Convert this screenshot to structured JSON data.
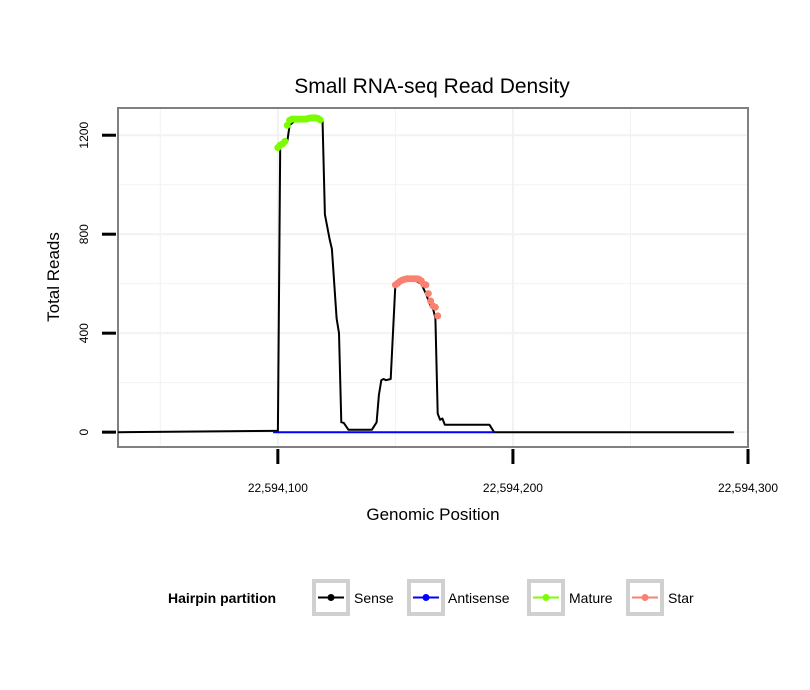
{
  "chart_data": {
    "type": "line",
    "title": "Small RNA-seq Read Density",
    "xlabel": "Genomic Position",
    "ylabel": "Total Reads",
    "xlim": [
      22594032,
      22594300
    ],
    "ylim": [
      -60,
      1310
    ],
    "x_ticks": [
      22594100,
      22594200,
      22594300
    ],
    "x_tick_labels": [
      "22,594,100",
      "22,594,200",
      "22,594,300"
    ],
    "y_ticks": [
      0,
      400,
      800,
      1200
    ],
    "y_tick_labels": [
      "0",
      "400",
      "800",
      "1200"
    ],
    "grid": true,
    "legend": {
      "title": "Hairpin partition",
      "position": "bottom",
      "entries": [
        "Sense",
        "Antisense",
        "Mature",
        "Star"
      ]
    },
    "series": [
      {
        "name": "Sense",
        "color": "#000000",
        "style": "line",
        "x": [
          22594032,
          22594098,
          22594100,
          22594101,
          22594102,
          22594104,
          22594105,
          22594108,
          22594112,
          22594115,
          22594118,
          22594119,
          22594120,
          22594122,
          22594123,
          22594125,
          22594126,
          22594127,
          22594128,
          22594130,
          22594132,
          22594135,
          22594140,
          22594142,
          22594143,
          22594144,
          22594145,
          22594146,
          22594148,
          22594150,
          22594151,
          22594152,
          22594155,
          22594158,
          22594161,
          22594163,
          22594165,
          22594166,
          22594167,
          22594168,
          22594169,
          22594170,
          22594171,
          22594172,
          22594180,
          22594190,
          22594192,
          22594294
        ],
        "values": [
          0,
          5,
          5,
          1150,
          1160,
          1175,
          1240,
          1265,
          1270,
          1270,
          1270,
          1265,
          880,
          780,
          740,
          460,
          400,
          40,
          38,
          10,
          10,
          10,
          10,
          40,
          150,
          210,
          215,
          210,
          215,
          600,
          610,
          615,
          620,
          615,
          600,
          560,
          510,
          500,
          460,
          75,
          50,
          55,
          30,
          30,
          30,
          30,
          0,
          0
        ]
      },
      {
        "name": "Antisense",
        "color": "#0000ff",
        "style": "line",
        "x": [
          22594098,
          22594192
        ],
        "values": [
          0,
          0
        ]
      },
      {
        "name": "Mature",
        "color": "#7cfc00",
        "style": "points",
        "x": [
          22594100,
          22594101,
          22594102,
          22594103,
          22594104,
          22594105,
          22594106,
          22594107,
          22594108,
          22594109,
          22594110,
          22594111,
          22594112,
          22594113,
          22594114,
          22594115,
          22594116,
          22594117,
          22594118
        ],
        "values": [
          1150,
          1160,
          1165,
          1175,
          1240,
          1260,
          1265,
          1265,
          1265,
          1265,
          1265,
          1265,
          1265,
          1268,
          1270,
          1270,
          1270,
          1268,
          1262
        ]
      },
      {
        "name": "Star",
        "color": "#fa8072",
        "style": "points",
        "x": [
          22594150,
          22594151,
          22594152,
          22594153,
          22594154,
          22594155,
          22594156,
          22594157,
          22594158,
          22594159,
          22594160,
          22594161,
          22594162,
          22594163,
          22594164,
          22594165,
          22594166,
          22594167,
          22594168
        ],
        "values": [
          595,
          602,
          610,
          615,
          618,
          620,
          620,
          620,
          620,
          620,
          618,
          612,
          598,
          595,
          560,
          530,
          510,
          505,
          470
        ]
      }
    ]
  }
}
